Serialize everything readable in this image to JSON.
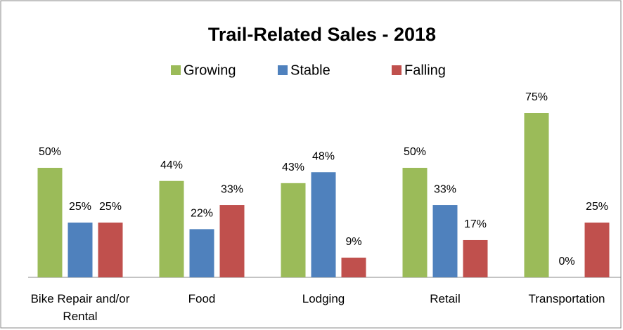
{
  "chart_data": {
    "type": "bar",
    "title": "Trail-Related Sales - 2018",
    "categories": [
      "Bike Repair and/or Rental",
      "Food",
      "Lodging",
      "Retail",
      "Transportation"
    ],
    "series": [
      {
        "name": "Growing",
        "color": "#9bbb59",
        "values": [
          50,
          44,
          43,
          50,
          75
        ],
        "value_labels": [
          "50%",
          "44%",
          "43%",
          "50%",
          "75%"
        ]
      },
      {
        "name": "Stable",
        "color": "#4f81bd",
        "values": [
          25,
          22,
          48,
          33,
          0
        ],
        "value_labels": [
          "25%",
          "22%",
          "48%",
          "33%",
          "0%"
        ]
      },
      {
        "name": "Falling",
        "color": "#c0504d",
        "values": [
          25,
          33,
          9,
          17,
          25
        ],
        "value_labels": [
          "25%",
          "33%",
          "9%",
          "17%",
          "25%"
        ]
      }
    ],
    "legend": "top"
  }
}
